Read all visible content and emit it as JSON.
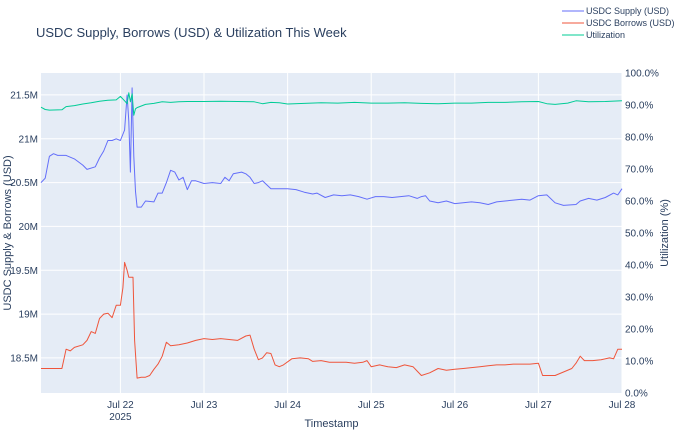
{
  "chart_data": {
    "type": "line",
    "title": "USDC Supply, Borrows (USD) & Utilization This Week",
    "xlabel": "Timestamp",
    "ylabel": "USDC Supply & Borrows (USD)",
    "y2label": "Utilization (%)",
    "x_ticks": [
      {
        "label": "Jul 22",
        "sub": "2025",
        "day": 0
      },
      {
        "label": "Jul 23",
        "sub": "",
        "day": 1
      },
      {
        "label": "Jul 24",
        "sub": "",
        "day": 2
      },
      {
        "label": "Jul 25",
        "sub": "",
        "day": 3
      },
      {
        "label": "Jul 26",
        "sub": "",
        "day": 4
      },
      {
        "label": "Jul 27",
        "sub": "",
        "day": 5
      },
      {
        "label": "Jul 28",
        "sub": "",
        "day": 6
      }
    ],
    "xlim_days_from_jul22": [
      -0.95,
      6.0
    ],
    "ylim": [
      18100000,
      21750000
    ],
    "y_ticks": [
      {
        "label": "18.5M",
        "value": 18500000
      },
      {
        "label": "19M",
        "value": 19000000
      },
      {
        "label": "19.5M",
        "value": 19500000
      },
      {
        "label": "20M",
        "value": 20000000
      },
      {
        "label": "20.5M",
        "value": 20500000
      },
      {
        "label": "21M",
        "value": 21000000
      },
      {
        "label": "21.5M",
        "value": 21500000
      }
    ],
    "y2lim": [
      0,
      100
    ],
    "y2_ticks": [
      "0.0%",
      "10.0%",
      "20.0%",
      "30.0%",
      "40.0%",
      "50.0%",
      "60.0%",
      "70.0%",
      "80.0%",
      "90.0%",
      "100.0%"
    ],
    "grid": true,
    "legend_position": "top-right",
    "series": [
      {
        "name": "USDC Supply (USD)",
        "color": "#636efa",
        "axis": "y",
        "points": [
          [
            -0.95,
            20500000
          ],
          [
            -0.9,
            20550000
          ],
          [
            -0.85,
            20800000
          ],
          [
            -0.8,
            20830000
          ],
          [
            -0.75,
            20810000
          ],
          [
            -0.65,
            20810000
          ],
          [
            -0.55,
            20770000
          ],
          [
            -0.45,
            20700000
          ],
          [
            -0.4,
            20650000
          ],
          [
            -0.3,
            20680000
          ],
          [
            -0.25,
            20780000
          ],
          [
            -0.2,
            20860000
          ],
          [
            -0.15,
            20980000
          ],
          [
            -0.1,
            20980000
          ],
          [
            -0.05,
            21000000
          ],
          [
            0.0,
            20980000
          ],
          [
            0.05,
            21100000
          ],
          [
            0.08,
            21500000
          ],
          [
            0.1,
            21200000
          ],
          [
            0.12,
            20620000
          ],
          [
            0.14,
            21580000
          ],
          [
            0.16,
            20800000
          ],
          [
            0.18,
            20400000
          ],
          [
            0.2,
            20220000
          ],
          [
            0.25,
            20220000
          ],
          [
            0.3,
            20290000
          ],
          [
            0.4,
            20280000
          ],
          [
            0.45,
            20380000
          ],
          [
            0.5,
            20380000
          ],
          [
            0.55,
            20500000
          ],
          [
            0.6,
            20640000
          ],
          [
            0.65,
            20620000
          ],
          [
            0.7,
            20530000
          ],
          [
            0.75,
            20560000
          ],
          [
            0.8,
            20420000
          ],
          [
            0.85,
            20520000
          ],
          [
            0.9,
            20520000
          ],
          [
            1.0,
            20490000
          ],
          [
            1.1,
            20500000
          ],
          [
            1.2,
            20490000
          ],
          [
            1.25,
            20560000
          ],
          [
            1.3,
            20520000
          ],
          [
            1.35,
            20600000
          ],
          [
            1.45,
            20620000
          ],
          [
            1.5,
            20600000
          ],
          [
            1.55,
            20560000
          ],
          [
            1.6,
            20490000
          ],
          [
            1.65,
            20500000
          ],
          [
            1.7,
            20520000
          ],
          [
            1.8,
            20430000
          ],
          [
            1.9,
            20430000
          ],
          [
            2.0,
            20430000
          ],
          [
            2.1,
            20420000
          ],
          [
            2.2,
            20390000
          ],
          [
            2.3,
            20370000
          ],
          [
            2.35,
            20380000
          ],
          [
            2.45,
            20330000
          ],
          [
            2.55,
            20360000
          ],
          [
            2.65,
            20350000
          ],
          [
            2.75,
            20360000
          ],
          [
            2.85,
            20340000
          ],
          [
            2.95,
            20310000
          ],
          [
            3.05,
            20340000
          ],
          [
            3.15,
            20340000
          ],
          [
            3.25,
            20330000
          ],
          [
            3.35,
            20340000
          ],
          [
            3.45,
            20350000
          ],
          [
            3.55,
            20320000
          ],
          [
            3.6,
            20340000
          ],
          [
            3.65,
            20350000
          ],
          [
            3.7,
            20290000
          ],
          [
            3.8,
            20270000
          ],
          [
            3.9,
            20290000
          ],
          [
            4.0,
            20260000
          ],
          [
            4.1,
            20270000
          ],
          [
            4.2,
            20280000
          ],
          [
            4.3,
            20270000
          ],
          [
            4.4,
            20250000
          ],
          [
            4.5,
            20280000
          ],
          [
            4.6,
            20290000
          ],
          [
            4.7,
            20300000
          ],
          [
            4.8,
            20310000
          ],
          [
            4.9,
            20300000
          ],
          [
            5.0,
            20350000
          ],
          [
            5.1,
            20360000
          ],
          [
            5.2,
            20270000
          ],
          [
            5.3,
            20240000
          ],
          [
            5.45,
            20250000
          ],
          [
            5.5,
            20290000
          ],
          [
            5.6,
            20320000
          ],
          [
            5.7,
            20300000
          ],
          [
            5.8,
            20330000
          ],
          [
            5.9,
            20380000
          ],
          [
            5.95,
            20360000
          ],
          [
            6.0,
            20430000
          ]
        ]
      },
      {
        "name": "USDC Borrows (USD)",
        "color": "#ef553b",
        "axis": "y",
        "points": [
          [
            -0.95,
            18380000
          ],
          [
            -0.7,
            18380000
          ],
          [
            -0.65,
            18600000
          ],
          [
            -0.6,
            18580000
          ],
          [
            -0.55,
            18620000
          ],
          [
            -0.45,
            18650000
          ],
          [
            -0.4,
            18700000
          ],
          [
            -0.35,
            18800000
          ],
          [
            -0.3,
            18780000
          ],
          [
            -0.25,
            18950000
          ],
          [
            -0.2,
            19000000
          ],
          [
            -0.15,
            19010000
          ],
          [
            -0.1,
            18960000
          ],
          [
            -0.05,
            19100000
          ],
          [
            0.0,
            19100000
          ],
          [
            0.03,
            19300000
          ],
          [
            0.05,
            19590000
          ],
          [
            0.08,
            19500000
          ],
          [
            0.1,
            19420000
          ],
          [
            0.15,
            19420000
          ],
          [
            0.17,
            18700000
          ],
          [
            0.2,
            18270000
          ],
          [
            0.25,
            18280000
          ],
          [
            0.3,
            18280000
          ],
          [
            0.35,
            18300000
          ],
          [
            0.4,
            18370000
          ],
          [
            0.45,
            18430000
          ],
          [
            0.5,
            18520000
          ],
          [
            0.55,
            18680000
          ],
          [
            0.6,
            18640000
          ],
          [
            0.7,
            18650000
          ],
          [
            0.8,
            18670000
          ],
          [
            0.9,
            18700000
          ],
          [
            1.0,
            18720000
          ],
          [
            1.1,
            18710000
          ],
          [
            1.2,
            18720000
          ],
          [
            1.3,
            18710000
          ],
          [
            1.4,
            18700000
          ],
          [
            1.5,
            18750000
          ],
          [
            1.55,
            18760000
          ],
          [
            1.6,
            18600000
          ],
          [
            1.65,
            18480000
          ],
          [
            1.7,
            18500000
          ],
          [
            1.75,
            18560000
          ],
          [
            1.8,
            18550000
          ],
          [
            1.85,
            18420000
          ],
          [
            1.9,
            18400000
          ],
          [
            1.95,
            18420000
          ],
          [
            2.05,
            18490000
          ],
          [
            2.15,
            18500000
          ],
          [
            2.25,
            18490000
          ],
          [
            2.3,
            18460000
          ],
          [
            2.4,
            18470000
          ],
          [
            2.5,
            18450000
          ],
          [
            2.6,
            18450000
          ],
          [
            2.7,
            18450000
          ],
          [
            2.8,
            18440000
          ],
          [
            2.9,
            18450000
          ],
          [
            2.95,
            18470000
          ],
          [
            3.0,
            18400000
          ],
          [
            3.1,
            18420000
          ],
          [
            3.2,
            18400000
          ],
          [
            3.3,
            18390000
          ],
          [
            3.4,
            18420000
          ],
          [
            3.5,
            18400000
          ],
          [
            3.55,
            18350000
          ],
          [
            3.6,
            18300000
          ],
          [
            3.7,
            18330000
          ],
          [
            3.8,
            18380000
          ],
          [
            3.9,
            18360000
          ],
          [
            4.0,
            18370000
          ],
          [
            4.1,
            18380000
          ],
          [
            4.2,
            18390000
          ],
          [
            4.3,
            18400000
          ],
          [
            4.4,
            18410000
          ],
          [
            4.5,
            18420000
          ],
          [
            4.6,
            18420000
          ],
          [
            4.7,
            18430000
          ],
          [
            4.8,
            18430000
          ],
          [
            4.9,
            18430000
          ],
          [
            5.0,
            18440000
          ],
          [
            5.05,
            18300000
          ],
          [
            5.2,
            18300000
          ],
          [
            5.3,
            18340000
          ],
          [
            5.4,
            18380000
          ],
          [
            5.45,
            18440000
          ],
          [
            5.5,
            18520000
          ],
          [
            5.55,
            18470000
          ],
          [
            5.65,
            18470000
          ],
          [
            5.75,
            18480000
          ],
          [
            5.85,
            18500000
          ],
          [
            5.9,
            18490000
          ],
          [
            5.95,
            18600000
          ],
          [
            6.0,
            18600000
          ]
        ]
      },
      {
        "name": "Utilization",
        "color": "#00cc96",
        "axis": "y2",
        "points": [
          [
            -0.95,
            89.3
          ],
          [
            -0.9,
            88.6
          ],
          [
            -0.85,
            88.4
          ],
          [
            -0.7,
            88.5
          ],
          [
            -0.65,
            89.5
          ],
          [
            -0.55,
            89.8
          ],
          [
            -0.45,
            90.3
          ],
          [
            -0.35,
            90.7
          ],
          [
            -0.25,
            91.2
          ],
          [
            -0.15,
            91.5
          ],
          [
            -0.05,
            91.6
          ],
          [
            0.0,
            92.7
          ],
          [
            0.05,
            91.3
          ],
          [
            0.08,
            90.4
          ],
          [
            0.1,
            93.8
          ],
          [
            0.12,
            91.0
          ],
          [
            0.14,
            93.5
          ],
          [
            0.16,
            86.8
          ],
          [
            0.18,
            88.8
          ],
          [
            0.2,
            89.2
          ],
          [
            0.3,
            90.2
          ],
          [
            0.4,
            90.5
          ],
          [
            0.5,
            91.0
          ],
          [
            0.6,
            90.8
          ],
          [
            0.7,
            91.0
          ],
          [
            0.8,
            91.1
          ],
          [
            1.0,
            91.1
          ],
          [
            1.2,
            91.2
          ],
          [
            1.4,
            91.1
          ],
          [
            1.6,
            91.0
          ],
          [
            1.7,
            90.4
          ],
          [
            1.8,
            90.8
          ],
          [
            1.9,
            90.7
          ],
          [
            2.0,
            90.3
          ],
          [
            2.2,
            90.5
          ],
          [
            2.4,
            90.7
          ],
          [
            2.6,
            90.6
          ],
          [
            2.8,
            90.8
          ],
          [
            3.0,
            90.6
          ],
          [
            3.2,
            90.6
          ],
          [
            3.4,
            90.7
          ],
          [
            3.6,
            90.5
          ],
          [
            3.8,
            90.4
          ],
          [
            4.0,
            90.6
          ],
          [
            4.2,
            90.6
          ],
          [
            4.4,
            90.8
          ],
          [
            4.6,
            90.8
          ],
          [
            4.8,
            91.0
          ],
          [
            5.0,
            91.1
          ],
          [
            5.1,
            90.4
          ],
          [
            5.2,
            90.2
          ],
          [
            5.35,
            90.6
          ],
          [
            5.45,
            91.3
          ],
          [
            5.6,
            91.0
          ],
          [
            5.8,
            91.1
          ],
          [
            6.0,
            91.3
          ]
        ]
      }
    ]
  }
}
